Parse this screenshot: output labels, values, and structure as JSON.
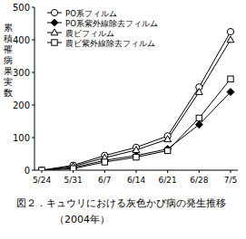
{
  "chart_data": {
    "type": "line",
    "title": "図２．キュウリにおける灰色かび病の発生推移",
    "subtitle": "（2004年）",
    "y_label": "累積罹病果実数",
    "categories": [
      "5/24",
      "5/31",
      "6/7",
      "6/14",
      "6/21",
      "6/28",
      "7/5"
    ],
    "series": [
      {
        "name": "PO系フィルム",
        "color": "#000000",
        "marker": "open-circle",
        "values": [
          0,
          15,
          45,
          70,
          105,
          255,
          425
        ]
      },
      {
        "name": "PO系紫外線除去フィルム",
        "color": "#000000",
        "marker": "filled-diamond",
        "values": [
          0,
          8,
          30,
          45,
          65,
          140,
          240
        ]
      },
      {
        "name": "農ビフィルム",
        "color": "#000000",
        "marker": "open-triangle",
        "values": [
          0,
          12,
          38,
          62,
          95,
          240,
          400
        ]
      },
      {
        "name": "農ビ紫外線除去フィルム",
        "color": "#000000",
        "marker": "open-square",
        "values": [
          0,
          5,
          25,
          40,
          60,
          160,
          280
        ]
      }
    ],
    "ylim": [
      0,
      500
    ],
    "yticks": [
      0,
      100,
      200,
      300,
      400,
      500
    ],
    "grid": false,
    "legend": "upper left"
  }
}
